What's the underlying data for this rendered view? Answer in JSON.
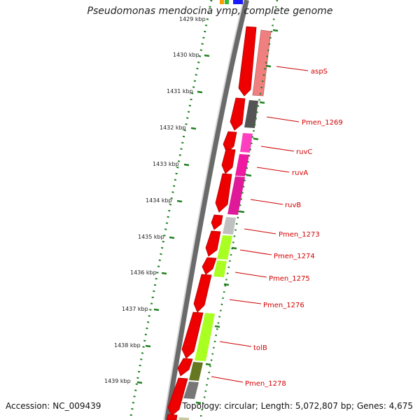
{
  "header": {
    "title": "Pseudomonas mendocina ymp, complete genome"
  },
  "footer": {
    "accession": "Accession: NC_009439",
    "topology": "Topology: circular; Length: 5,072,807 bp; Genes: 4,675"
  },
  "colors": {
    "cds_forward": "#ee0000",
    "backbone": "#707070",
    "scale_dots": "#208020",
    "label_red": "#d40000",
    "aspS": "#f08080",
    "Pmen_1269": "#555555",
    "ruvC": "#ff3fbf",
    "ruvA": "#ee1aa0",
    "ruvB": "#e0189a",
    "Pmen_1273": "#c0c0c0",
    "Pmen_1274": "#aaff22",
    "Pmen_1275": "#aaff22",
    "tolB": "#aaff22",
    "Pmen_1278_a": "#667722",
    "Pmen_1278_b": "#777777"
  },
  "scale": {
    "ticks": [
      "1429 kbp",
      "1430 kbp",
      "1431 kbp",
      "1432 kbp",
      "1433 kbp",
      "1434 kbp",
      "1435 kbp",
      "1436 kbp",
      "1437 kbp",
      "1438 kbp",
      "1439 kbp"
    ]
  },
  "genes": {
    "labels": [
      "aspS",
      "Pmen_1269",
      "ruvC",
      "ruvA",
      "ruvB",
      "Pmen_1273",
      "Pmen_1274",
      "Pmen_1275",
      "Pmen_1276",
      "tolB",
      "Pmen_1278"
    ]
  }
}
